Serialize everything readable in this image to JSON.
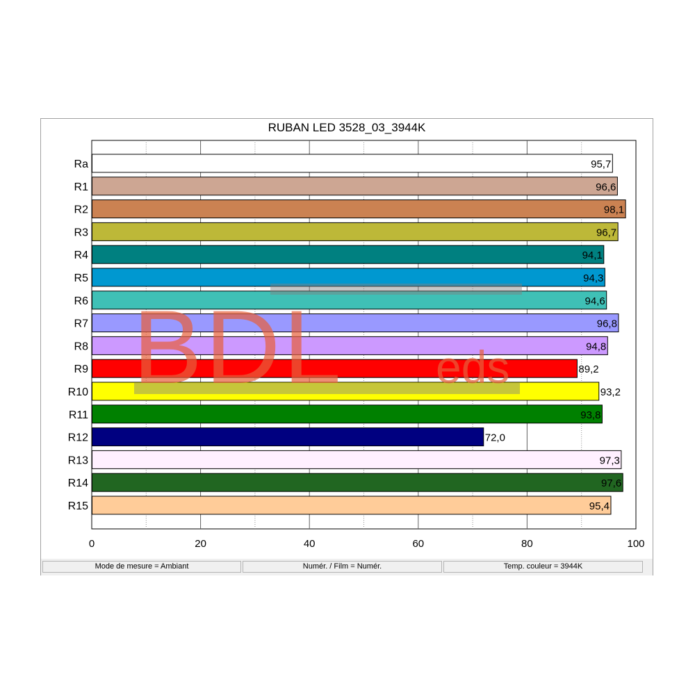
{
  "chart_data": {
    "type": "bar",
    "orientation": "horizontal",
    "title": "RUBAN LED 3528_03_3944K",
    "categories": [
      "Ra",
      "R1",
      "R2",
      "R3",
      "R4",
      "R5",
      "R6",
      "R7",
      "R8",
      "R9",
      "R10",
      "R11",
      "R12",
      "R13",
      "R14",
      "R15"
    ],
    "values": [
      95.7,
      96.6,
      98.1,
      96.7,
      94.1,
      94.3,
      94.6,
      96.8,
      94.8,
      89.2,
      93.2,
      93.8,
      72.0,
      97.3,
      97.6,
      95.4
    ],
    "value_labels": [
      "95,7",
      "96,6",
      "98,1",
      "96,7",
      "94,1",
      "94,3",
      "94,6",
      "96,8",
      "94,8",
      "89,2",
      "93,2",
      "93,8",
      "72,0",
      "97,3",
      "97,6",
      "95,4"
    ],
    "colors": [
      "#ffffff",
      "#cda693",
      "#cb8252",
      "#bdb838",
      "#008080",
      "#0098d0",
      "#3fc0b6",
      "#9999ff",
      "#cc99ff",
      "#ff0000",
      "#ffff00",
      "#008000",
      "#000080",
      "#fff0ff",
      "#216621",
      "#ffcc99"
    ],
    "xlim": [
      0,
      100
    ],
    "xticks": [
      0,
      20,
      40,
      60,
      80,
      100
    ],
    "xtick_labels": [
      "0",
      "20",
      "40",
      "60",
      "80",
      "100"
    ],
    "grid": true,
    "xlabel": "",
    "ylabel": ""
  },
  "statusbar": {
    "mode": "Mode de mesure = Ambiant",
    "film": "Numér. / Film = Numér.",
    "temp": "Temp. couleur = 3944K"
  },
  "watermark": {
    "main": "BDL",
    "sub": "eds"
  }
}
